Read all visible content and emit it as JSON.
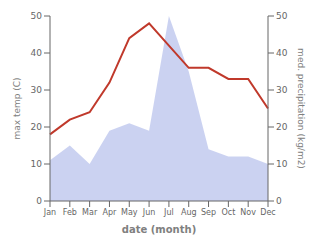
{
  "chart_data": {
    "type": "line",
    "categories": [
      "Jan",
      "Feb",
      "Mar",
      "Apr",
      "May",
      "Jun",
      "Jul",
      "Aug",
      "Sep",
      "Oct",
      "Nov",
      "Dec"
    ],
    "xlabel": "date (month)",
    "ylabel": "max temp (C)",
    "y2label": "med. precipitation (kg/m2)",
    "series": [
      {
        "type": "area",
        "color": "#c5cdf0",
        "axis": "y2",
        "values": [
          11,
          15,
          10,
          19,
          21,
          19,
          50,
          35,
          14,
          12,
          12,
          10
        ]
      },
      {
        "type": "line",
        "color": "#c0392b",
        "values": [
          18,
          22,
          24,
          32,
          44,
          48,
          42,
          36,
          36,
          33,
          33,
          25
        ]
      }
    ],
    "ylim": [
      0,
      50
    ],
    "yticks": [
      0,
      10,
      20,
      30,
      40,
      50
    ],
    "y2lim": [
      0,
      50
    ],
    "y2ticks": [
      0,
      10,
      20,
      30,
      40,
      50
    ],
    "grid": false
  }
}
